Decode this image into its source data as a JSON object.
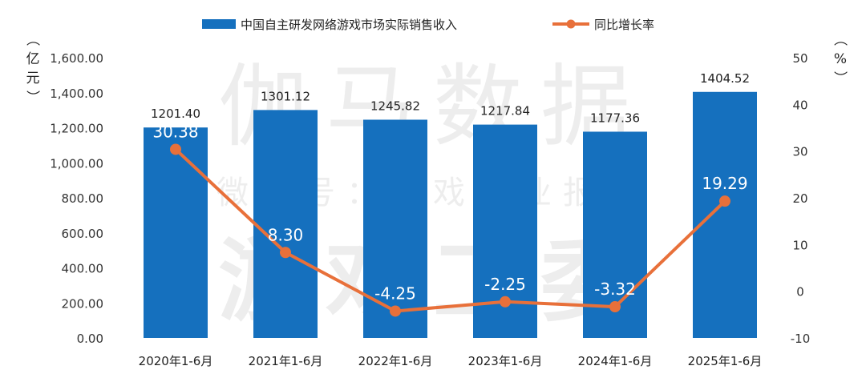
{
  "chart_data": {
    "type": "bar+line",
    "categories": [
      "2020年1-6月",
      "2021年1-6月",
      "2022年1-6月",
      "2023年1-6月",
      "2024年1-6月",
      "2025年1-6月"
    ],
    "series": [
      {
        "name": "中国自主研发网络游戏市场实际销售收入",
        "type": "bar",
        "axis": "left",
        "values": [
          1201.4,
          1301.12,
          1245.82,
          1217.84,
          1177.36,
          1404.52
        ],
        "labels": [
          "1201.40",
          "1301.12",
          "1245.82",
          "1217.84",
          "1177.36",
          "1404.52"
        ],
        "color": "#1570BE"
      },
      {
        "name": "同比增长率",
        "type": "line",
        "axis": "right",
        "values": [
          30.38,
          8.3,
          -4.25,
          -2.25,
          -3.32,
          19.29
        ],
        "labels": [
          "30.38",
          "8.30",
          "-4.25",
          "-2.25",
          "-3.32",
          "19.29"
        ],
        "color": "#E8703A"
      }
    ],
    "left_axis": {
      "label": "（亿元）",
      "ylim": [
        0,
        1600
      ],
      "ticks": [
        0,
        200,
        400,
        600,
        800,
        1000,
        1200,
        1400,
        1600
      ],
      "tick_labels": [
        "0.00",
        "200.00",
        "400.00",
        "600.00",
        "800.00",
        "1,000.00",
        "1,200.00",
        "1,400.00",
        "1,600.00"
      ]
    },
    "right_axis": {
      "label": "（%）",
      "ylim": [
        -10,
        50
      ],
      "ticks": [
        -10,
        0,
        10,
        20,
        30,
        40,
        50
      ],
      "tick_labels": [
        "-10",
        "0",
        "10",
        "20",
        "30",
        "40",
        "50"
      ]
    },
    "legend_position": "top-center",
    "grid": false
  },
  "watermark": {
    "line1": "伽马数据",
    "line2": "微信号：游戏产业报告",
    "line3": "游戏工委"
  }
}
